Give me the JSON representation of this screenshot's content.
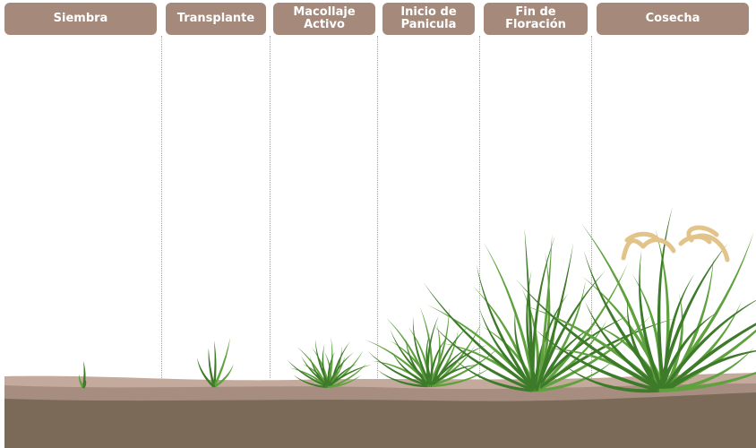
{
  "stages": [
    {
      "id": "siembra",
      "label": "Siembra"
    },
    {
      "id": "transplante",
      "label": "Transplante"
    },
    {
      "id": "macollaje",
      "label": "Macollaje\nActivo"
    },
    {
      "id": "panicula",
      "label": "Inicio de\nPanicula"
    },
    {
      "id": "floracion",
      "label": "Fin de\nFloración"
    },
    {
      "id": "cosecha",
      "label": "Cosecha"
    }
  ],
  "colors": {
    "label_bg": "#a58a7b",
    "label_text": "#ffffff",
    "divider": "#b39f93",
    "soil_light": "#c4aa9d",
    "soil_mid": "#a68d7f",
    "soil_dark": "#7a6a57",
    "leaf_dark": "#3d7a2a",
    "leaf_light": "#5ea13d",
    "grain": "#e2c48a"
  }
}
